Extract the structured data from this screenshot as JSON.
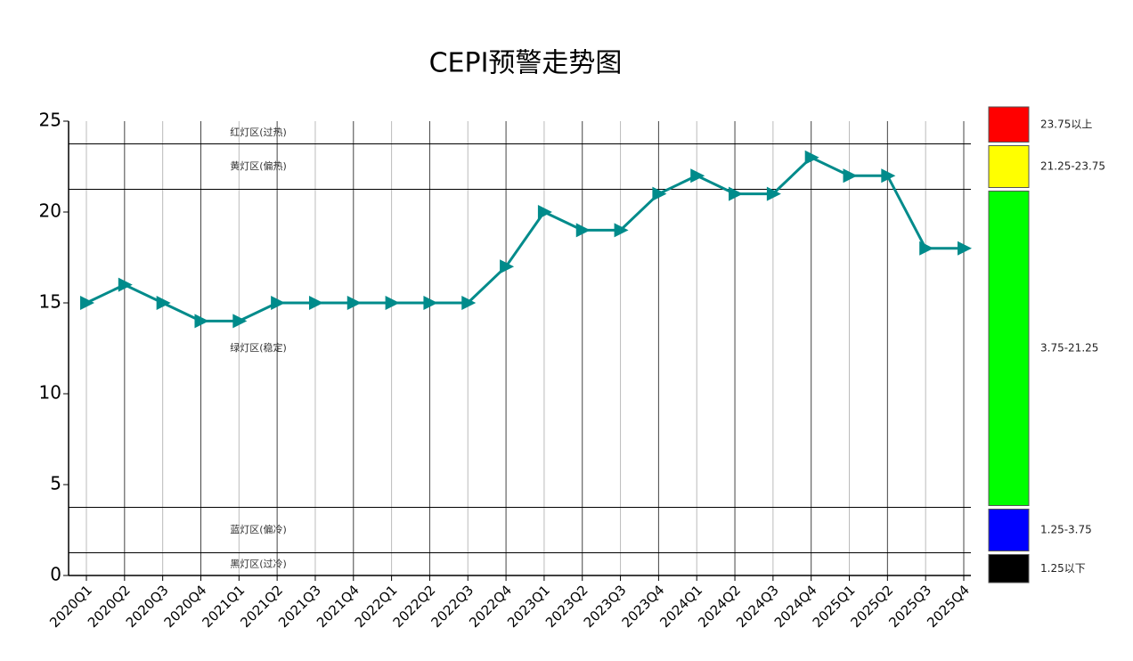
{
  "chart_data": {
    "type": "line",
    "title": "CEPI预警走势图",
    "categories": [
      "2020Q1",
      "2020Q2",
      "2020Q3",
      "2020Q4",
      "2021Q1",
      "2021Q2",
      "2021Q3",
      "2021Q4",
      "2022Q1",
      "2022Q2",
      "2022Q3",
      "2022Q4",
      "2023Q1",
      "2023Q2",
      "2023Q3",
      "2023Q4",
      "2024Q1",
      "2024Q2",
      "2024Q3",
      "2024Q4",
      "2025Q1",
      "2025Q2",
      "2025Q3",
      "2025Q4"
    ],
    "values": [
      15,
      16,
      15,
      14,
      14,
      15,
      15,
      15,
      15,
      15,
      15,
      17,
      20,
      19,
      19,
      21,
      22,
      21,
      21,
      23,
      22,
      22,
      18,
      18
    ],
    "color": "#008b8b",
    "ylim": [
      0,
      25
    ],
    "yticks": [
      0,
      5,
      10,
      15,
      20,
      25
    ],
    "zones": [
      {
        "label": "红灯区(过热)",
        "range_label": "23.75以上",
        "color": "#ff0000",
        "lower": 23.75,
        "upper": null
      },
      {
        "label": "黄灯区(偏热)",
        "range_label": "21.25-23.75",
        "color": "#ffff00",
        "lower": 21.25,
        "upper": 23.75
      },
      {
        "label": "绿灯区(稳定)",
        "range_label": "3.75-21.25",
        "color": "#00ff00",
        "lower": 3.75,
        "upper": 21.25
      },
      {
        "label": "蓝灯区(偏冷)",
        "range_label": "1.25-3.75",
        "color": "#0000ff",
        "lower": 1.25,
        "upper": 3.75
      },
      {
        "label": "黑灯区(过冷)",
        "range_label": "1.25以下",
        "color": "#000000",
        "lower": null,
        "upper": 1.25
      }
    ]
  }
}
